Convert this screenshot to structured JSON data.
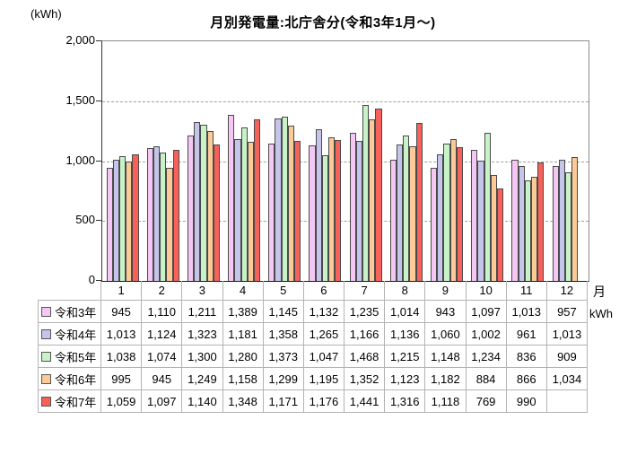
{
  "title": "月別発電量:北庁舎分(令和3年1月～)",
  "y_axis_unit": "(kWh)",
  "x_axis_label": "月",
  "table_unit_label": "kWh",
  "chart_data": {
    "type": "bar",
    "title": "月別発電量:北庁舎分(令和3年1月～)",
    "xlabel": "月",
    "ylabel": "kWh",
    "ylim": [
      0,
      2000
    ],
    "yticks": [
      0,
      500,
      1000,
      1500,
      2000
    ],
    "grid": true,
    "legend_position": "table-left",
    "categories": [
      "1",
      "2",
      "3",
      "4",
      "5",
      "6",
      "7",
      "8",
      "9",
      "10",
      "11",
      "12"
    ],
    "series": [
      {
        "name": "令和3年",
        "color": "#f5c7f5",
        "values": [
          945,
          1110,
          1211,
          1389,
          1145,
          1132,
          1235,
          1014,
          943,
          1097,
          1013,
          957
        ]
      },
      {
        "name": "令和4年",
        "color": "#c5c5eb",
        "values": [
          1013,
          1124,
          1323,
          1181,
          1358,
          1265,
          1166,
          1136,
          1060,
          1002,
          961,
          1013
        ]
      },
      {
        "name": "令和5年",
        "color": "#c8f3c8",
        "values": [
          1038,
          1074,
          1300,
          1280,
          1373,
          1047,
          1468,
          1215,
          1148,
          1234,
          836,
          909
        ]
      },
      {
        "name": "令和6年",
        "color": "#fbca97",
        "values": [
          995,
          945,
          1249,
          1158,
          1299,
          1195,
          1352,
          1123,
          1182,
          884,
          866,
          1034
        ]
      },
      {
        "name": "令和7年",
        "color": "#f6615a",
        "values": [
          1059,
          1097,
          1140,
          1348,
          1171,
          1176,
          1441,
          1316,
          1118,
          769,
          990,
          null
        ]
      }
    ]
  }
}
